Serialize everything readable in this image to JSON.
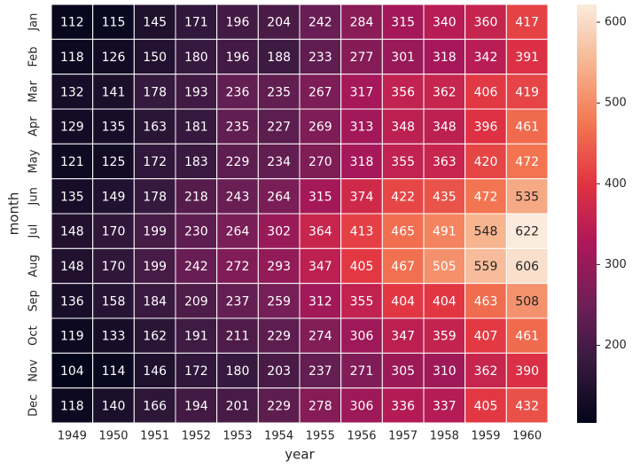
{
  "chart_data": {
    "type": "heatmap",
    "xlabel": "year",
    "ylabel": "month",
    "x": [
      "1949",
      "1950",
      "1951",
      "1952",
      "1953",
      "1954",
      "1955",
      "1956",
      "1957",
      "1958",
      "1959",
      "1960"
    ],
    "y": [
      "Jan",
      "Feb",
      "Mar",
      "Apr",
      "May",
      "Jun",
      "Jul",
      "Aug",
      "Sep",
      "Oct",
      "Nov",
      "Dec"
    ],
    "values": [
      [
        112,
        115,
        145,
        171,
        196,
        204,
        242,
        284,
        315,
        340,
        360,
        417
      ],
      [
        118,
        126,
        150,
        180,
        196,
        188,
        233,
        277,
        301,
        318,
        342,
        391
      ],
      [
        132,
        141,
        178,
        193,
        236,
        235,
        267,
        317,
        356,
        362,
        406,
        419
      ],
      [
        129,
        135,
        163,
        181,
        235,
        227,
        269,
        313,
        348,
        348,
        396,
        461
      ],
      [
        121,
        125,
        172,
        183,
        229,
        234,
        270,
        318,
        355,
        363,
        420,
        472
      ],
      [
        135,
        149,
        178,
        218,
        243,
        264,
        315,
        374,
        422,
        435,
        472,
        535
      ],
      [
        148,
        170,
        199,
        230,
        264,
        302,
        364,
        413,
        465,
        491,
        548,
        622
      ],
      [
        148,
        170,
        199,
        242,
        272,
        293,
        347,
        405,
        467,
        505,
        559,
        606
      ],
      [
        136,
        158,
        184,
        209,
        237,
        259,
        312,
        355,
        404,
        404,
        463,
        508
      ],
      [
        119,
        133,
        162,
        191,
        211,
        229,
        274,
        306,
        347,
        359,
        407,
        461
      ],
      [
        104,
        114,
        146,
        172,
        180,
        203,
        237,
        271,
        305,
        310,
        362,
        390
      ],
      [
        118,
        140,
        166,
        194,
        201,
        229,
        278,
        306,
        336,
        337,
        405,
        432
      ]
    ],
    "colormap": [
      "#03051a",
      "#35193e",
      "#701f57",
      "#ad1759",
      "#e13342",
      "#f37651",
      "#f6b48f",
      "#faebdd"
    ],
    "clim": [
      104,
      622
    ],
    "cticks": [
      200,
      300,
      400,
      500,
      600
    ]
  }
}
